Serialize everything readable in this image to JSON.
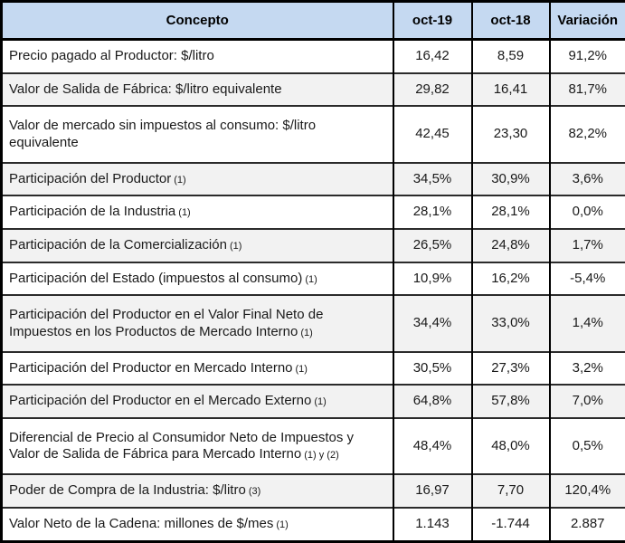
{
  "chart_data": {
    "type": "table",
    "columns": [
      "Concepto",
      "oct-19",
      "oct-18",
      "Variación"
    ],
    "rows": [
      {
        "concepto": "Precio pagado al Productor: $/litro",
        "note": "",
        "oct19": "16,42",
        "oct18": "8,59",
        "variacion": "91,2%"
      },
      {
        "concepto": "Valor de Salida de Fábrica: $/litro equivalente",
        "note": "",
        "oct19": "29,82",
        "oct18": "16,41",
        "variacion": "81,7%"
      },
      {
        "concepto": "Valor de mercado sin impuestos al consumo: $/litro equivalente",
        "note": "",
        "oct19": "42,45",
        "oct18": "23,30",
        "variacion": "82,2%"
      },
      {
        "concepto": "Participación del Productor",
        "note": "(1)",
        "oct19": "34,5%",
        "oct18": "30,9%",
        "variacion": "3,6%"
      },
      {
        "concepto": "Participación de la Industria",
        "note": "(1)",
        "oct19": "28,1%",
        "oct18": "28,1%",
        "variacion": "0,0%"
      },
      {
        "concepto": "Participación de la Comercialización",
        "note": "(1)",
        "oct19": "26,5%",
        "oct18": "24,8%",
        "variacion": "1,7%"
      },
      {
        "concepto": "Participación del Estado (impuestos al consumo)",
        "note": "(1)",
        "oct19": "10,9%",
        "oct18": "16,2%",
        "variacion": "-5,4%"
      },
      {
        "concepto": "Participación del Productor en el Valor Final Neto de Impuestos en los Productos de Mercado Interno",
        "note": "(1)",
        "oct19": "34,4%",
        "oct18": "33,0%",
        "variacion": "1,4%"
      },
      {
        "concepto": "Participación del Productor en Mercado Interno",
        "note": "(1)",
        "oct19": "30,5%",
        "oct18": "27,3%",
        "variacion": "3,2%"
      },
      {
        "concepto": "Participación del Productor en el Mercado Externo",
        "note": "(1)",
        "oct19": "64,8%",
        "oct18": "57,8%",
        "variacion": "7,0%"
      },
      {
        "concepto": "Diferencial de Precio al Consumidor Neto de Impuestos y Valor de Salida de Fábrica para Mercado Interno",
        "note": "(1) y (2)",
        "oct19": "48,4%",
        "oct18": "48,0%",
        "variacion": "0,5%"
      },
      {
        "concepto": "Poder de Compra de la Industria: $/litro",
        "note": "(3)",
        "oct19": "16,97",
        "oct18": "7,70",
        "variacion": "120,4%"
      },
      {
        "concepto": "Valor Neto de la Cadena: millones de $/mes",
        "note": "(1)",
        "oct19": "1.143",
        "oct18": "-1.744",
        "variacion": "2.887"
      }
    ],
    "colors": {
      "header_bg": "#C5D9F1",
      "row_alt_bg": "#F2F2F2",
      "border": "#000000"
    }
  }
}
